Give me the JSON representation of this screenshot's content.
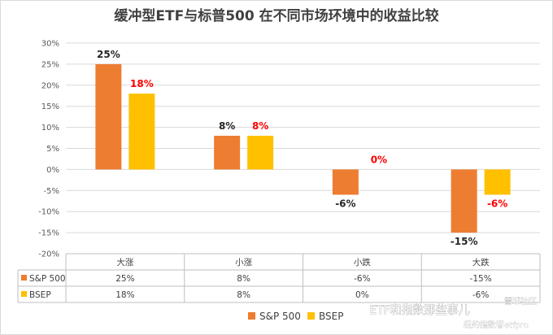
{
  "chart_data": {
    "type": "bar",
    "title": "缓冲型ETF与标普500 在不同市场环境中的收益比较",
    "categories": [
      "大涨",
      "小涨",
      "小跌",
      "大跌"
    ],
    "series": [
      {
        "name": "S&P 500",
        "values": [
          25,
          8,
          -6,
          -15
        ],
        "labels": [
          "25%",
          "8%",
          "-6%",
          "-15%"
        ],
        "table_values": [
          "25%",
          "8%",
          "-6%",
          "-15%"
        ],
        "color": "#ed7d31",
        "label_color": "#262626"
      },
      {
        "name": "BSEP",
        "values": [
          18,
          8,
          0,
          -6
        ],
        "labels": [
          "18%",
          "8%",
          "0%",
          "-6%"
        ],
        "table_values": [
          "18%",
          "8%",
          "0%",
          "-6%"
        ],
        "color": "#ffc000",
        "label_color": "#ff0000"
      }
    ],
    "ylim": [
      -20,
      30
    ],
    "yticks": [
      "-20%",
      "-15%",
      "-10%",
      "-5%",
      "0%",
      "5%",
      "10%",
      "15%",
      "20%",
      "25%",
      "30%"
    ],
    "grid": true,
    "legend_position": "bottom",
    "xlabel": "",
    "ylabel": ""
  },
  "watermark": {
    "line1": "ETF和指数那些事儿",
    "line2": "纽约指数客etfpro",
    "corner": "雪球社区"
  }
}
